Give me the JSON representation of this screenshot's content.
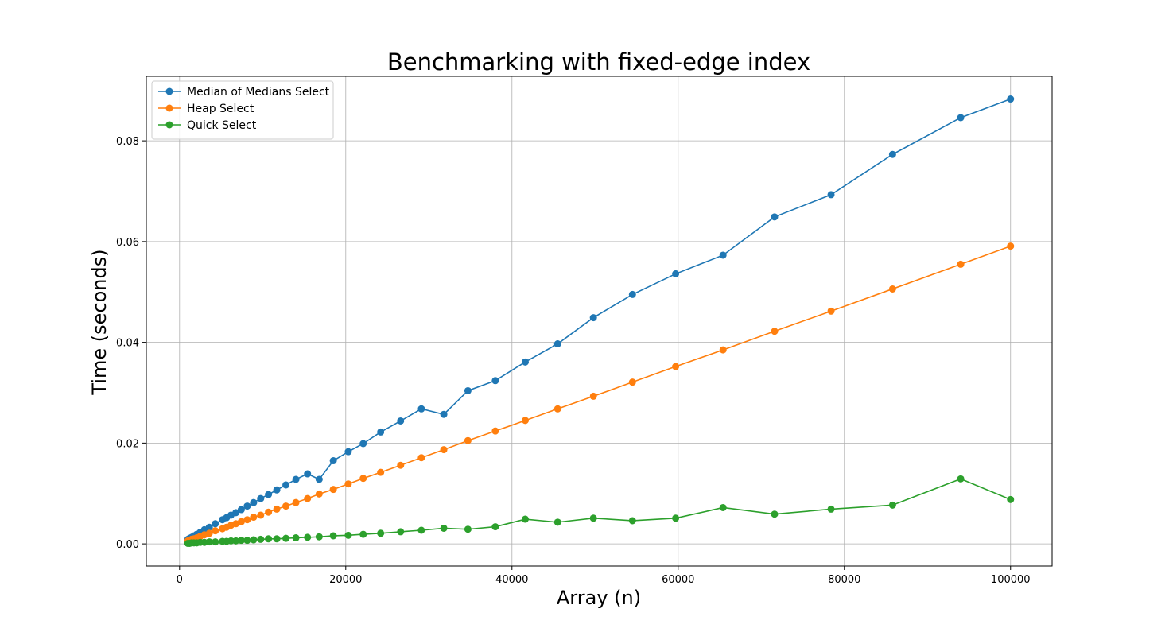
{
  "chart_data": {
    "type": "line",
    "title": "Benchmarking with fixed-edge index",
    "xlabel": "Array (n)",
    "ylabel": "Time (seconds)",
    "xlim": [
      -4000,
      105000
    ],
    "ylim": [
      -0.0044,
      0.0928
    ],
    "xticks": [
      0,
      20000,
      40000,
      60000,
      80000,
      100000
    ],
    "yticks": [
      0.0,
      0.02,
      0.04,
      0.06,
      0.08
    ],
    "ytick_labels": [
      "0.00",
      "0.02",
      "0.04",
      "0.06",
      "0.08"
    ],
    "grid": true,
    "legend_position": "upper-left",
    "marker": "circle",
    "x": [
      1000,
      1200,
      1440,
      1730,
      2070,
      2490,
      2990,
      3580,
      4300,
      5160,
      5650,
      6190,
      6780,
      7430,
      8140,
      8910,
      9760,
      10700,
      11700,
      12800,
      14000,
      15400,
      16800,
      18500,
      20300,
      22100,
      24200,
      26600,
      29100,
      31800,
      34700,
      38000,
      41600,
      45500,
      49800,
      54500,
      59700,
      65400,
      71600,
      78400,
      85800,
      94000,
      100000
    ],
    "series": [
      {
        "name": "Median of Medians Select",
        "color": "#1f77b4",
        "values": [
          0.0009,
          0.0011,
          0.0013,
          0.0016,
          0.0019,
          0.0023,
          0.0028,
          0.0033,
          0.004,
          0.0048,
          0.0052,
          0.0057,
          0.0062,
          0.0068,
          0.0075,
          0.0082,
          0.009,
          0.0098,
          0.0107,
          0.0117,
          0.0128,
          0.0139,
          0.0128,
          0.0165,
          0.0183,
          0.0199,
          0.0222,
          0.0244,
          0.0268,
          0.0257,
          0.0304,
          0.0324,
          0.0361,
          0.0397,
          0.0449,
          0.0495,
          0.0536,
          0.0573,
          0.0649,
          0.0693,
          0.0773,
          0.0846,
          0.0883
        ]
      },
      {
        "name": "Heap Select",
        "color": "#ff7f0e",
        "values": [
          0.0006,
          0.0007,
          0.0009,
          0.001,
          0.0012,
          0.0015,
          0.0018,
          0.0021,
          0.0026,
          0.003,
          0.0033,
          0.0037,
          0.004,
          0.0044,
          0.0048,
          0.0053,
          0.0057,
          0.0063,
          0.0069,
          0.0075,
          0.0082,
          0.009,
          0.0099,
          0.0108,
          0.0119,
          0.013,
          0.0142,
          0.0156,
          0.0171,
          0.0187,
          0.0205,
          0.0224,
          0.0245,
          0.0268,
          0.0293,
          0.0321,
          0.0352,
          0.0385,
          0.0422,
          0.0462,
          0.0506,
          0.0555,
          0.0591
        ]
      },
      {
        "name": "Quick Select",
        "color": "#2ca02c",
        "values": [
          0.0001,
          0.0001,
          0.0002,
          0.0002,
          0.0002,
          0.0003,
          0.0003,
          0.0004,
          0.0004,
          0.0005,
          0.0005,
          0.0006,
          0.0006,
          0.0007,
          0.0007,
          0.0008,
          0.0009,
          0.001,
          0.001,
          0.0011,
          0.0012,
          0.0013,
          0.0014,
          0.0016,
          0.0017,
          0.0019,
          0.0021,
          0.0024,
          0.0027,
          0.0031,
          0.0029,
          0.0034,
          0.0049,
          0.0043,
          0.0051,
          0.0046,
          0.0051,
          0.0072,
          0.0059,
          0.0069,
          0.0077,
          0.0129,
          0.0088
        ]
      }
    ]
  }
}
